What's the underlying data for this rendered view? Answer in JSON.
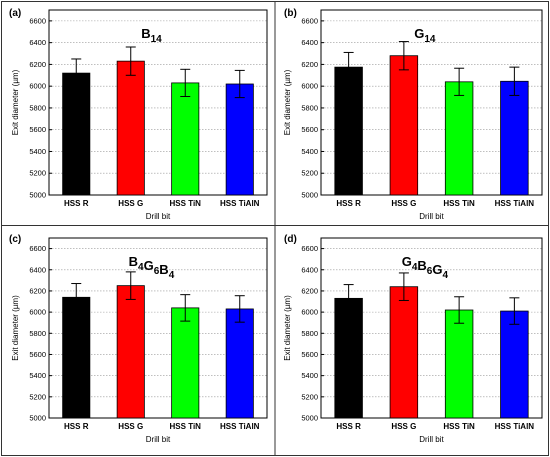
{
  "figure": {
    "border_color": "#333333"
  },
  "colors": {
    "HSS R": "#000000",
    "HSS G": "#ff0000",
    "HSS TiN": "#00ff00",
    "HSS TiAlN": "#0000ff"
  },
  "chart_data": [
    {
      "type": "bar",
      "panel_label": "(a)",
      "title": {
        "main": "B",
        "sub": "14"
      },
      "xlabel": "Drill bit",
      "ylabel": "Exit diameter (µm)",
      "categories": [
        "HSS R",
        "HSS G",
        "HSS TiN",
        "HSS TiAlN"
      ],
      "values": [
        6120,
        6230,
        6030,
        6020
      ],
      "errors": [
        130,
        130,
        125,
        125
      ],
      "ylim": [
        5000,
        6700
      ],
      "yticks": [
        "5000",
        "5200",
        "5400",
        "5600",
        "5800",
        "6000",
        "6200",
        "6400",
        "6600"
      ],
      "grid": true
    },
    {
      "type": "bar",
      "panel_label": "(b)",
      "title": {
        "main": "G",
        "sub": "14"
      },
      "xlabel": "Drill bit",
      "ylabel": "Exit diameter (µm)",
      "categories": [
        "HSS R",
        "HSS G",
        "HSS TiN",
        "HSS TiAlN"
      ],
      "values": [
        6175,
        6280,
        6040,
        6045
      ],
      "errors": [
        135,
        130,
        125,
        130
      ],
      "ylim": [
        5000,
        6700
      ],
      "yticks": [
        "5000",
        "5200",
        "5400",
        "5600",
        "5800",
        "6000",
        "6200",
        "6400",
        "6600"
      ],
      "grid": true
    },
    {
      "type": "bar",
      "panel_label": "(c)",
      "title": {
        "main": "B",
        "sub": "4",
        "main2": "G",
        "sub2": "6",
        "main3": "B",
        "sub3": "4"
      },
      "xlabel": "Drill bit",
      "ylabel": "Exit diameter (µm)",
      "categories": [
        "HSS R",
        "HSS G",
        "HSS TiN",
        "HSS TiAlN"
      ],
      "values": [
        6140,
        6250,
        6040,
        6030
      ],
      "errors": [
        130,
        130,
        125,
        125
      ],
      "ylim": [
        5000,
        6700
      ],
      "yticks": [
        "5000",
        "5200",
        "5400",
        "5600",
        "5800",
        "6000",
        "6200",
        "6400",
        "6600"
      ],
      "grid": true
    },
    {
      "type": "bar",
      "panel_label": "(d)",
      "title": {
        "main": "G",
        "sub": "4",
        "main2": "B",
        "sub2": "6",
        "main3": "G",
        "sub3": "4"
      },
      "xlabel": "Drill bit",
      "ylabel": "Exit diameter (µm)",
      "categories": [
        "HSS R",
        "HSS G",
        "HSS TiN",
        "HSS TiAlN"
      ],
      "values": [
        6130,
        6240,
        6020,
        6010
      ],
      "errors": [
        130,
        130,
        125,
        125
      ],
      "ylim": [
        5000,
        6700
      ],
      "yticks": [
        "5000",
        "5200",
        "5400",
        "5600",
        "5800",
        "6000",
        "6200",
        "6400",
        "6600"
      ],
      "grid": true
    }
  ]
}
